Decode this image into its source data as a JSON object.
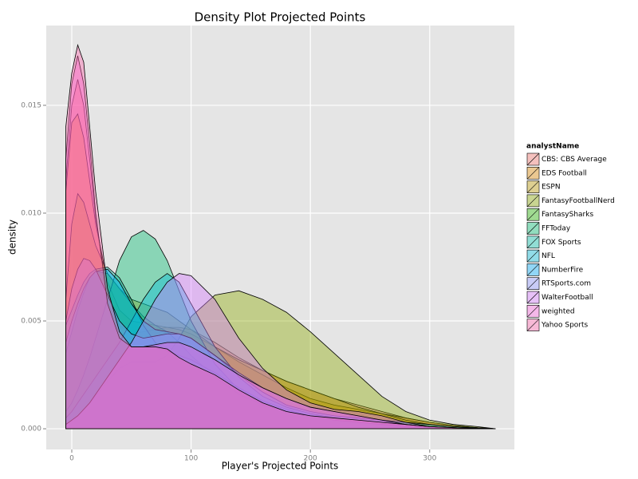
{
  "chart_data": {
    "type": "density",
    "title": "Density Plot Projected Points",
    "x_label": "Player's Projected Points",
    "y_label": "density",
    "legend_title": "analystName",
    "legend": "right",
    "grid": true,
    "xlim": [
      -21.4,
      371
    ],
    "ylim": [
      -0.00096,
      0.0187
    ],
    "xticks": [
      0,
      100,
      200,
      300
    ],
    "yticks": [
      {
        "value": 0,
        "label": "0.000"
      },
      {
        "value": 0.005,
        "label": "0.005"
      },
      {
        "value": 0.01,
        "label": "0.010"
      },
      {
        "value": 0.015,
        "label": "0.015"
      }
    ],
    "x": [
      -5,
      0,
      5,
      10,
      15,
      20,
      30,
      40,
      50,
      60,
      70,
      80,
      90,
      100,
      120,
      140,
      160,
      180,
      200,
      220,
      240,
      260,
      280,
      300,
      320,
      340,
      355
    ],
    "series": [
      {
        "name": "CBS: CBS Average",
        "color": "#F8766D",
        "values": [
          0.0115,
          0.015,
          0.0162,
          0.015,
          0.0125,
          0.0098,
          0.0062,
          0.0048,
          0.0044,
          0.0045,
          0.0046,
          0.0047,
          0.0047,
          0.0046,
          0.004,
          0.0033,
          0.0027,
          0.0022,
          0.0018,
          0.0014,
          0.0011,
          0.0008,
          0.0005,
          0.0003,
          0.00015,
          5e-05,
          0
        ]
      },
      {
        "name": "EDS Football",
        "color": "#E18A00",
        "values": [
          0.011,
          0.0142,
          0.0146,
          0.0135,
          0.0115,
          0.0095,
          0.0068,
          0.0055,
          0.005,
          0.0049,
          0.0048,
          0.0047,
          0.0046,
          0.0044,
          0.0038,
          0.0031,
          0.0025,
          0.0019,
          0.0014,
          0.0011,
          0.0009,
          0.0007,
          0.0005,
          0.0003,
          0.00015,
          5e-05,
          0
        ]
      },
      {
        "name": "ESPN",
        "color": "#BE9C00",
        "values": [
          0.006,
          0.0095,
          0.0109,
          0.0105,
          0.0095,
          0.0085,
          0.0072,
          0.0065,
          0.006,
          0.0058,
          0.0056,
          0.0054,
          0.005,
          0.0046,
          0.0038,
          0.0032,
          0.0027,
          0.0022,
          0.0018,
          0.0014,
          0.001,
          0.0007,
          0.0004,
          0.0002,
          0.0001,
          3e-05,
          0
        ]
      },
      {
        "name": "FantasyFootballNerd",
        "color": "#8CAB00",
        "values": [
          0.0002,
          0.0004,
          0.0006,
          0.0009,
          0.0012,
          0.0015,
          0.0022,
          0.0028,
          0.0031,
          0.0031,
          0.0031,
          0.0034,
          0.0042,
          0.0052,
          0.0062,
          0.0064,
          0.006,
          0.0054,
          0.0045,
          0.0035,
          0.0025,
          0.0015,
          0.0008,
          0.0004,
          0.0002,
          0.0001,
          0
        ]
      },
      {
        "name": "FantasySharks",
        "color": "#24B700",
        "values": [
          0.0035,
          0.0045,
          0.0055,
          0.0063,
          0.007,
          0.0073,
          0.0072,
          0.0065,
          0.0058,
          0.0052,
          0.0048,
          0.0045,
          0.004,
          0.0034,
          0.0024,
          0.0016,
          0.0011,
          0.0008,
          0.0006,
          0.0004,
          0.0003,
          0.0002,
          0.0001,
          5e-05,
          2e-05,
          1e-05,
          0
        ]
      },
      {
        "name": "FFToday",
        "color": "#00BE70",
        "values": [
          0.0008,
          0.0012,
          0.0018,
          0.0025,
          0.0033,
          0.0042,
          0.006,
          0.0078,
          0.0089,
          0.0092,
          0.0088,
          0.0078,
          0.0064,
          0.005,
          0.003,
          0.0018,
          0.0011,
          0.0008,
          0.0006,
          0.0004,
          0.0003,
          0.0002,
          0.0001,
          5e-05,
          2e-05,
          1e-05,
          0
        ]
      },
      {
        "name": "FOX Sports",
        "color": "#00C1AB",
        "values": [
          0.0048,
          0.0055,
          0.0062,
          0.0068,
          0.0072,
          0.0074,
          0.0075,
          0.007,
          0.006,
          0.0048,
          0.004,
          0.0036,
          0.0034,
          0.0032,
          0.0026,
          0.0019,
          0.0013,
          0.0009,
          0.0006,
          0.0004,
          0.0003,
          0.0002,
          0.0001,
          5e-05,
          2e-05,
          1e-05,
          0
        ]
      },
      {
        "name": "NFL",
        "color": "#00BBDA",
        "values": [
          0.0005,
          0.0008,
          0.0012,
          0.0016,
          0.002,
          0.0024,
          0.0032,
          0.004,
          0.005,
          0.006,
          0.0068,
          0.0072,
          0.0068,
          0.0058,
          0.0038,
          0.0024,
          0.0015,
          0.001,
          0.0007,
          0.0005,
          0.0004,
          0.0003,
          0.0002,
          0.0001,
          5e-05,
          2e-05,
          0
        ]
      },
      {
        "name": "NumberFire",
        "color": "#00ACFC",
        "values": [
          0.004,
          0.005,
          0.0058,
          0.0065,
          0.007,
          0.0073,
          0.0074,
          0.0068,
          0.0058,
          0.005,
          0.0046,
          0.0045,
          0.0044,
          0.0042,
          0.0034,
          0.0025,
          0.0017,
          0.0011,
          0.0008,
          0.0006,
          0.0005,
          0.0004,
          0.0003,
          0.0002,
          0.0001,
          5e-05,
          0
        ]
      },
      {
        "name": "RTSports.com",
        "color": "#8B93FF",
        "values": [
          0.005,
          0.0065,
          0.0074,
          0.0079,
          0.0078,
          0.0074,
          0.0062,
          0.005,
          0.0044,
          0.0042,
          0.0043,
          0.0044,
          0.0044,
          0.0042,
          0.0034,
          0.0026,
          0.0019,
          0.0014,
          0.001,
          0.0008,
          0.0006,
          0.0004,
          0.0002,
          0.0001,
          5e-05,
          2e-05,
          0
        ]
      },
      {
        "name": "WalterFootball",
        "color": "#D575FE",
        "values": [
          0.0002,
          0.0004,
          0.0006,
          0.0009,
          0.0012,
          0.0016,
          0.0024,
          0.0032,
          0.004,
          0.005,
          0.006,
          0.0068,
          0.0072,
          0.0071,
          0.006,
          0.0042,
          0.0028,
          0.0018,
          0.0012,
          0.0009,
          0.0008,
          0.0006,
          0.0003,
          0.0001,
          5e-05,
          2e-05,
          0
        ]
      },
      {
        "name": "weighted",
        "color": "#F962DD",
        "values": [
          0.0125,
          0.016,
          0.0173,
          0.016,
          0.0132,
          0.01,
          0.0058,
          0.0042,
          0.0038,
          0.0038,
          0.0039,
          0.004,
          0.004,
          0.0038,
          0.0032,
          0.0025,
          0.0019,
          0.0014,
          0.001,
          0.0008,
          0.0006,
          0.0004,
          0.0002,
          0.0001,
          5e-05,
          2e-05,
          0
        ]
      },
      {
        "name": "Yahoo Sports",
        "color": "#FF65AC",
        "values": [
          0.014,
          0.0165,
          0.0178,
          0.017,
          0.014,
          0.011,
          0.0065,
          0.0045,
          0.0038,
          0.0038,
          0.0038,
          0.0037,
          0.0033,
          0.003,
          0.0025,
          0.0018,
          0.0012,
          0.0008,
          0.0006,
          0.0005,
          0.0004,
          0.0003,
          0.0002,
          0.0001,
          5e-05,
          2e-05,
          0
        ]
      }
    ]
  }
}
